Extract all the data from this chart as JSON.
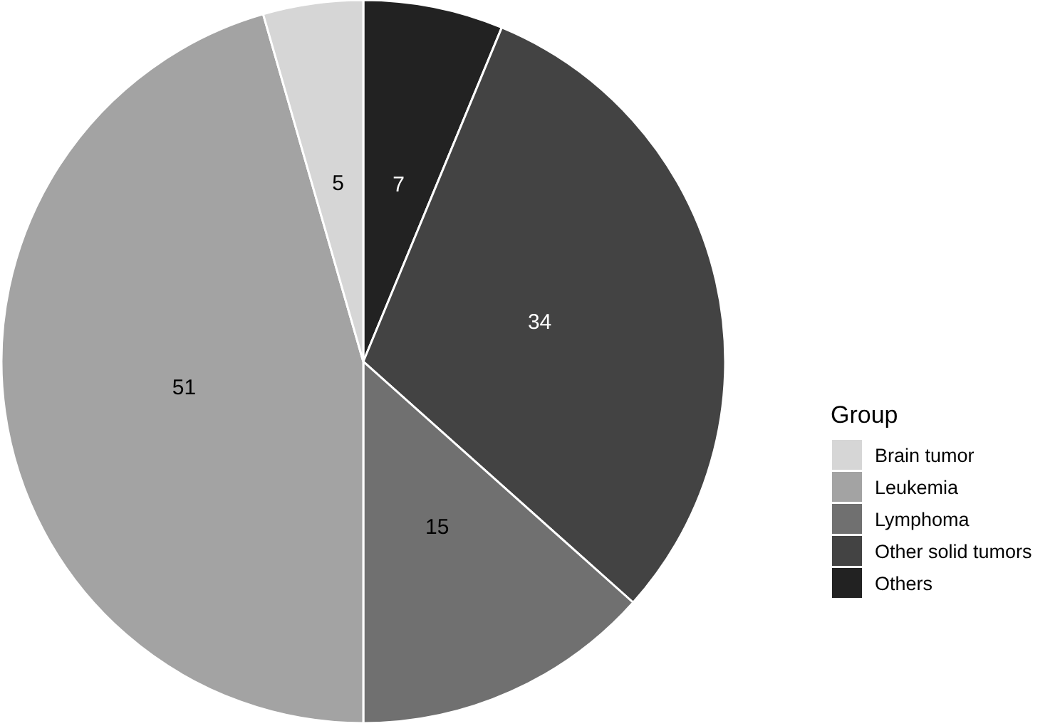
{
  "chart_data": {
    "type": "pie",
    "legend_title": "Group",
    "categories": [
      "Brain tumor",
      "Leukemia",
      "Lymphoma",
      "Other solid tumors",
      "Others"
    ],
    "values": [
      5,
      51,
      15,
      34,
      7
    ],
    "colors": [
      "#d6d6d6",
      "#a3a3a3",
      "#707070",
      "#434343",
      "#222222"
    ],
    "data_labels": true,
    "legend": "right"
  }
}
